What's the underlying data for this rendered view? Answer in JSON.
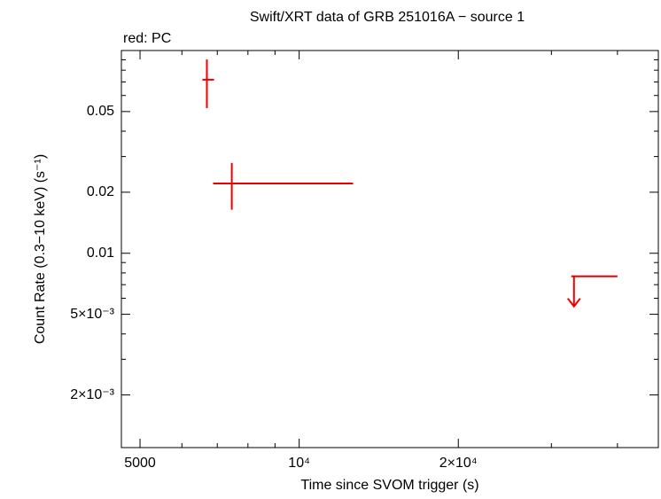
{
  "chart_data": {
    "type": "errorbar",
    "title": "Swift/XRT data of GRB 251016A − source 1",
    "subtitle": "red: PC",
    "x_label": "Time since SVOM trigger (s)",
    "y_label": "Count Rate (0.3−10 keV) (s⁻¹)",
    "log_x": true,
    "log_y": true,
    "xlim": [
      4610,
      47800
    ],
    "ylim": [
      0.0011,
      0.1
    ],
    "xticks": [
      5000,
      {
        "value": 10000,
        "label": "10⁴"
      },
      {
        "value": 20000,
        "label": "2×10⁴"
      }
    ],
    "xminor": [
      6000,
      7000,
      8000,
      9000,
      30000,
      40000
    ],
    "yticks": [
      0.05,
      0.02,
      0.01,
      {
        "value": 0.005,
        "label": "5×10⁻³"
      },
      {
        "value": 0.002,
        "label": "2×10⁻³"
      }
    ],
    "yminor": [
      0.003,
      0.004,
      0.006,
      0.007,
      0.008,
      0.009,
      0.03,
      0.04,
      0.06,
      0.07,
      0.08,
      0.09
    ],
    "series": [
      {
        "color": "#ee0000",
        "x": [
          6690,
          7457
        ],
        "x_low": [
          6561,
          6874
        ],
        "x_high": [
          6903,
          12650
        ],
        "values": [
          0.0718,
          0.0221
        ],
        "y_low": [
          0.052,
          0.0164
        ],
        "y_high": [
          0.0903,
          0.0279
        ]
      },
      {
        "color": "#ee0000",
        "upper_limit": true,
        "x": [
          33100
        ],
        "x_high": [
          40000
        ],
        "values": [
          0.0077
        ]
      }
    ]
  }
}
